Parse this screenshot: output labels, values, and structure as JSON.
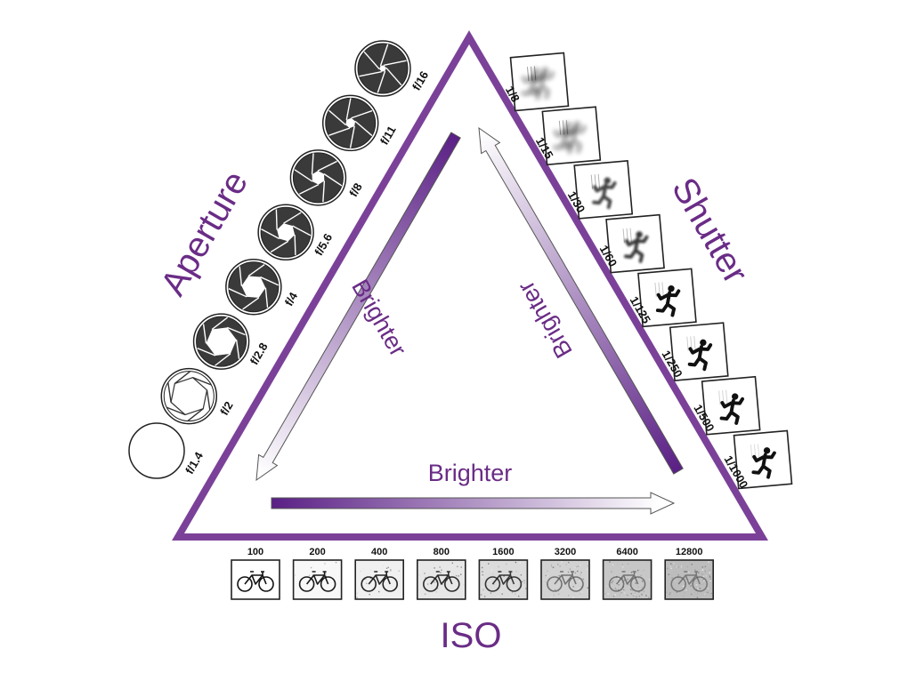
{
  "title": "",
  "accent_color": "#7b4199",
  "text_color": "#6a2c86",
  "triangle": {
    "left_label": "Aperture",
    "right_label": "Shutter",
    "bottom_label": "ISO"
  },
  "arrows": {
    "left": {
      "label": "Brighter",
      "direction": "toward bottom-left"
    },
    "right": {
      "label": "Brighter",
      "direction": "toward top"
    },
    "bottom": {
      "label": "Brighter",
      "direction": "toward right"
    }
  },
  "aperture": {
    "icon": "aperture-diaphragm-icon",
    "stops": [
      {
        "label": "f/1.4",
        "openness": 1.0
      },
      {
        "label": "f/2",
        "openness": 0.82
      },
      {
        "label": "f/2.8",
        "openness": 0.66
      },
      {
        "label": "f/4",
        "openness": 0.52
      },
      {
        "label": "f/5.6",
        "openness": 0.4
      },
      {
        "label": "f/8",
        "openness": 0.3
      },
      {
        "label": "f/11",
        "openness": 0.22
      },
      {
        "label": "f/16",
        "openness": 0.15
      }
    ]
  },
  "shutter": {
    "icon": "running-figure-icon",
    "speeds": [
      {
        "label": "1/8",
        "blur": 1.0
      },
      {
        "label": "1/15",
        "blur": 0.85
      },
      {
        "label": "1/30",
        "blur": 0.65
      },
      {
        "label": "1/60",
        "blur": 0.5
      },
      {
        "label": "1/125",
        "blur": 0.3
      },
      {
        "label": "1/250",
        "blur": 0.2
      },
      {
        "label": "1/500",
        "blur": 0.1
      },
      {
        "label": "1/1000",
        "blur": 0.0
      }
    ]
  },
  "iso": {
    "icon": "bicycle-icon",
    "values": [
      {
        "label": "100",
        "noise": 0.0
      },
      {
        "label": "200",
        "noise": 0.1
      },
      {
        "label": "400",
        "noise": 0.22
      },
      {
        "label": "800",
        "noise": 0.35
      },
      {
        "label": "1600",
        "noise": 0.5
      },
      {
        "label": "3200",
        "noise": 0.65
      },
      {
        "label": "6400",
        "noise": 0.8
      },
      {
        "label": "12800",
        "noise": 0.95
      }
    ]
  }
}
